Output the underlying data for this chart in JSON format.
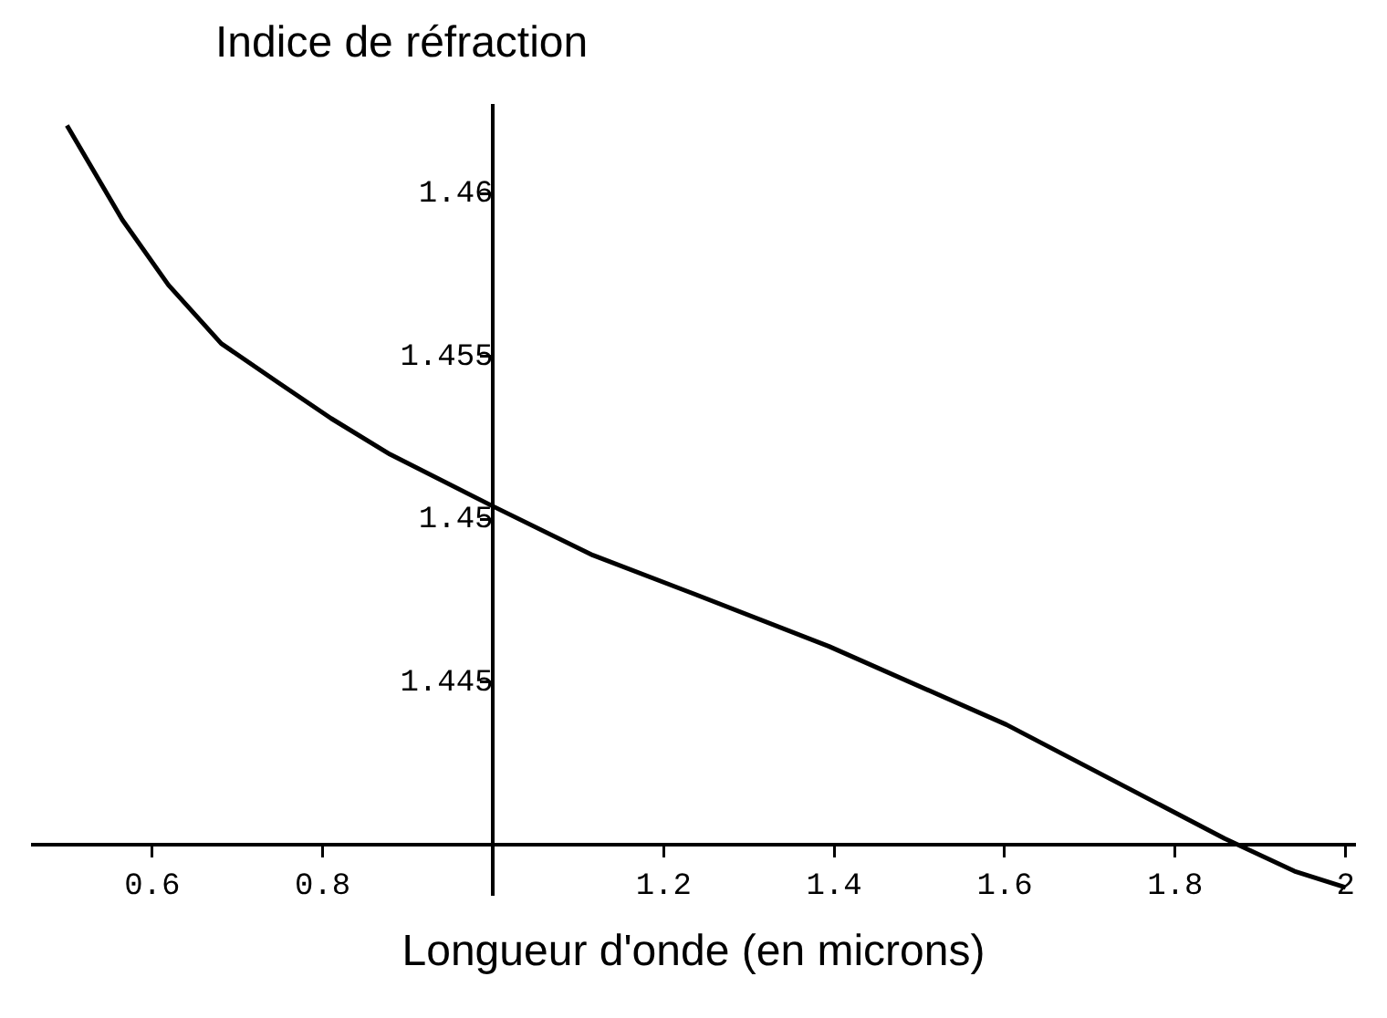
{
  "chart_data": {
    "type": "line",
    "xlabel": "Longueur d'onde (en microns)",
    "ylabel": "Indice de réfraction",
    "x": [
      0.5,
      0.565,
      0.619,
      0.681,
      0.748,
      0.81,
      0.879,
      1.0,
      1.117,
      1.227,
      1.394,
      1.602,
      1.858,
      1.94,
      2.0
    ],
    "series": [
      {
        "color": "#000000",
        "values": [
          1.4621,
          1.4592,
          1.4572,
          1.4554,
          1.4542,
          1.4531,
          1.452,
          1.4504,
          1.4489,
          1.4478,
          1.4461,
          1.4437,
          1.4402,
          1.4392,
          1.4387
        ]
      }
    ],
    "xlim": [
      0.46,
      2.01
    ],
    "ylim": [
      1.4385,
      1.4627
    ],
    "xticks": [
      0.6,
      0.8,
      {
        "value": 1,
        "label": null
      },
      1.2,
      1.4,
      1.6,
      1.8,
      2
    ],
    "yticks": [
      {
        "value": 1.44,
        "label": null
      },
      1.445,
      1.45,
      1.455,
      1.46
    ],
    "grid": false,
    "legend": false,
    "marker": "none",
    "line_style": "solid"
  }
}
